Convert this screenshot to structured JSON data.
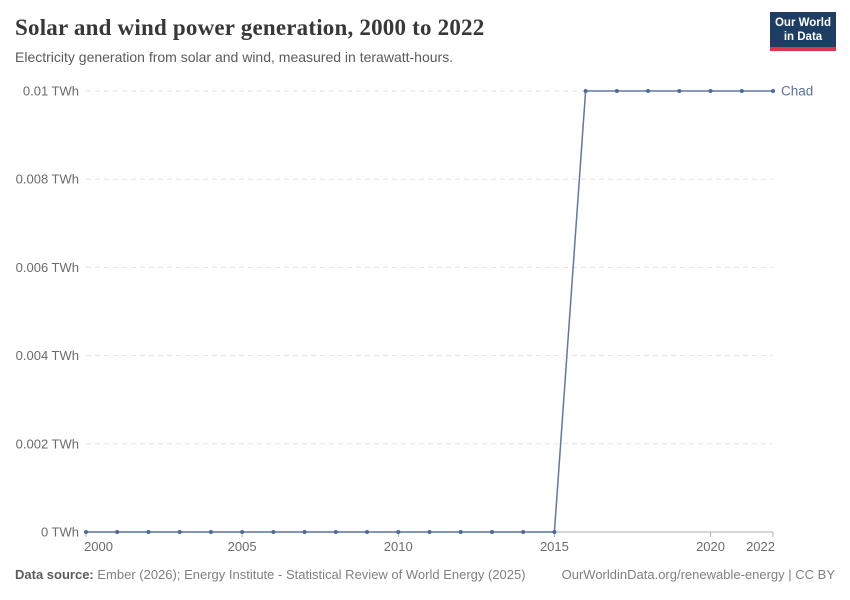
{
  "header": {
    "title": "Solar and wind power generation, 2000 to 2022",
    "subtitle": "Electricity generation from solar and wind, measured in terawatt-hours.",
    "logo": {
      "line1": "Our World",
      "line2": "in Data",
      "bg_color": "#1d3d63",
      "accent_color": "#dc354c"
    }
  },
  "chart_data": {
    "type": "line",
    "title": "Solar and wind power generation, 2000 to 2022",
    "unit": "TWh",
    "xlim": [
      2000,
      2022
    ],
    "ylim": [
      0,
      0.01
    ],
    "grid": true,
    "legend_position": "end-of-line",
    "x_ticks": [
      2000,
      2005,
      2010,
      2015,
      2020,
      2022
    ],
    "y_ticks": [
      {
        "value": 0,
        "label": "0 TWh"
      },
      {
        "value": 0.002,
        "label": "0.002 TWh"
      },
      {
        "value": 0.004,
        "label": "0.004 TWh"
      },
      {
        "value": 0.006,
        "label": "0.006 TWh"
      },
      {
        "value": 0.008,
        "label": "0.008 TWh"
      },
      {
        "value": 0.01,
        "label": "0.01 TWh"
      }
    ],
    "series": [
      {
        "name": "Chad",
        "color": "#4c6a9c",
        "label_color": "#56739d",
        "x": [
          2000,
          2001,
          2002,
          2003,
          2004,
          2005,
          2006,
          2007,
          2008,
          2009,
          2010,
          2011,
          2012,
          2013,
          2014,
          2015,
          2016,
          2017,
          2018,
          2019,
          2020,
          2021,
          2022
        ],
        "values": [
          0,
          0,
          0,
          0,
          0,
          0,
          0,
          0,
          0,
          0,
          0,
          0,
          0,
          0,
          0,
          0,
          0.01,
          0.01,
          0.01,
          0.01,
          0.01,
          0.01,
          0.01
        ]
      }
    ]
  },
  "footer": {
    "source_label": "Data source:",
    "source_text": " Ember (2026); Energy Institute - Statistical Review of World Energy (2025)",
    "credit": "OurWorldinData.org/renewable-energy | CC BY"
  }
}
